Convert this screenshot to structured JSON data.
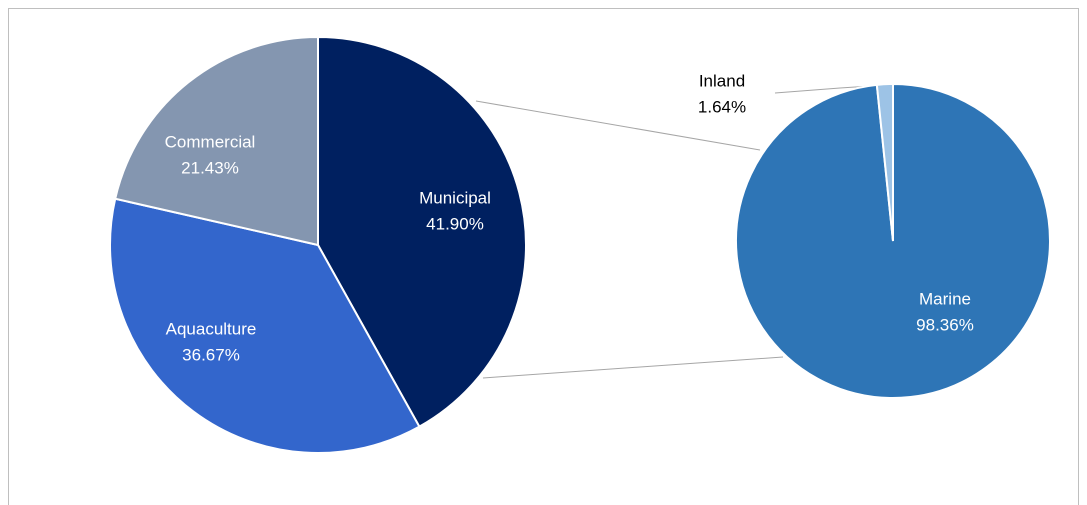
{
  "chart_data": [
    {
      "type": "pie",
      "categories": [
        "Municipal",
        "Aquaculture",
        "Commercial"
      ],
      "values": [
        41.9,
        36.67,
        21.43
      ],
      "value_labels": [
        "41.90%",
        "36.67%",
        "21.43%"
      ],
      "colors": [
        "#002060",
        "#3366cc",
        "#8496b0"
      ]
    },
    {
      "type": "pie",
      "categories": [
        "Marine",
        "Inland"
      ],
      "values": [
        98.36,
        1.64
      ],
      "value_labels": [
        "98.36%",
        "1.64%"
      ],
      "colors": [
        "#2e75b6",
        "#9dc3e6"
      ]
    }
  ]
}
